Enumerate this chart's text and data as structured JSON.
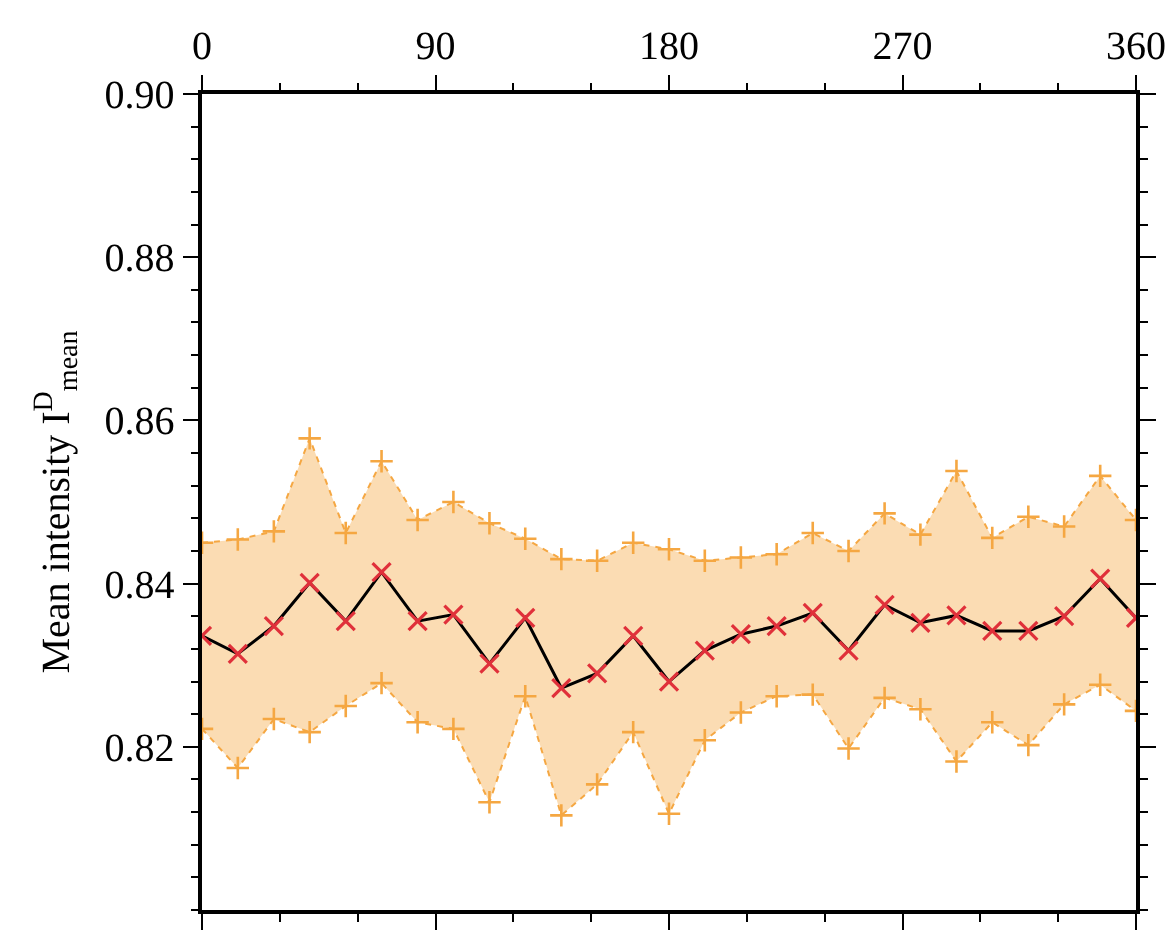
{
  "chart_data": {
    "type": "line",
    "ylabel": "Mean intensity I$^{D}$$_{mean}$",
    "x": [
      0,
      13.8,
      27.7,
      41.5,
      55.4,
      69.2,
      83.1,
      96.9,
      110.8,
      124.6,
      138.5,
      152.3,
      166.2,
      180,
      193.8,
      207.7,
      221.5,
      235.4,
      249.2,
      263.1,
      276.9,
      290.8,
      304.6,
      318.5,
      332.3,
      346.2,
      360
    ],
    "series": [
      {
        "color": "#f5a742",
        "marker": "cross",
        "line_style": "dotted",
        "values": [
          0.8222,
          0.8174,
          0.8234,
          0.8218,
          0.825,
          0.8278,
          0.823,
          0.8222,
          0.8132,
          0.8262,
          0.8116,
          0.8154,
          0.8218,
          0.8118,
          0.8208,
          0.8242,
          0.8262,
          0.8264,
          0.8198,
          0.826,
          0.8246,
          0.8182,
          0.823,
          0.8202,
          0.8252,
          0.8276,
          0.8244
        ]
      },
      {
        "type": "area",
        "color": "#f5a742",
        "marker": "cross",
        "line_style": "dotted",
        "values": [
          0.845,
          0.8454,
          0.8464,
          0.8578,
          0.8462,
          0.855,
          0.8478,
          0.85,
          0.8474,
          0.8455,
          0.843,
          0.8428,
          0.845,
          0.8442,
          0.8428,
          0.8432,
          0.8436,
          0.8462,
          0.844,
          0.8486,
          0.846,
          0.8538,
          0.8456,
          0.8482,
          0.847,
          0.8532,
          0.8478
        ]
      },
      {
        "color": "#e0303a",
        "marker": "cross",
        "line_style": "solid",
        "values": [
          0.8336,
          0.8314,
          0.8348,
          0.8401,
          0.8354,
          0.8414,
          0.8354,
          0.8362,
          0.8302,
          0.8358,
          0.8272,
          0.829,
          0.8336,
          0.828,
          0.8318,
          0.8338,
          0.8348,
          0.8364,
          0.8318,
          0.8374,
          0.8352,
          0.8361,
          0.8342,
          0.8342,
          0.836,
          0.8406,
          0.8358
        ]
      }
    ],
    "xlim": [
      0,
      360
    ],
    "xticks": [
      0,
      90,
      180,
      270,
      360
    ],
    "ylim": [
      0.8,
      0.9
    ],
    "yticks": [
      {
        "value": 0.82,
        "label": "0.82"
      },
      {
        "value": 0.84,
        "label": "0.84"
      },
      {
        "value": 0.86,
        "label": "0.86"
      },
      {
        "value": 0.88,
        "label": "0.88"
      },
      {
        "value": 0.9,
        "label": "0.90"
      }
    ]
  }
}
